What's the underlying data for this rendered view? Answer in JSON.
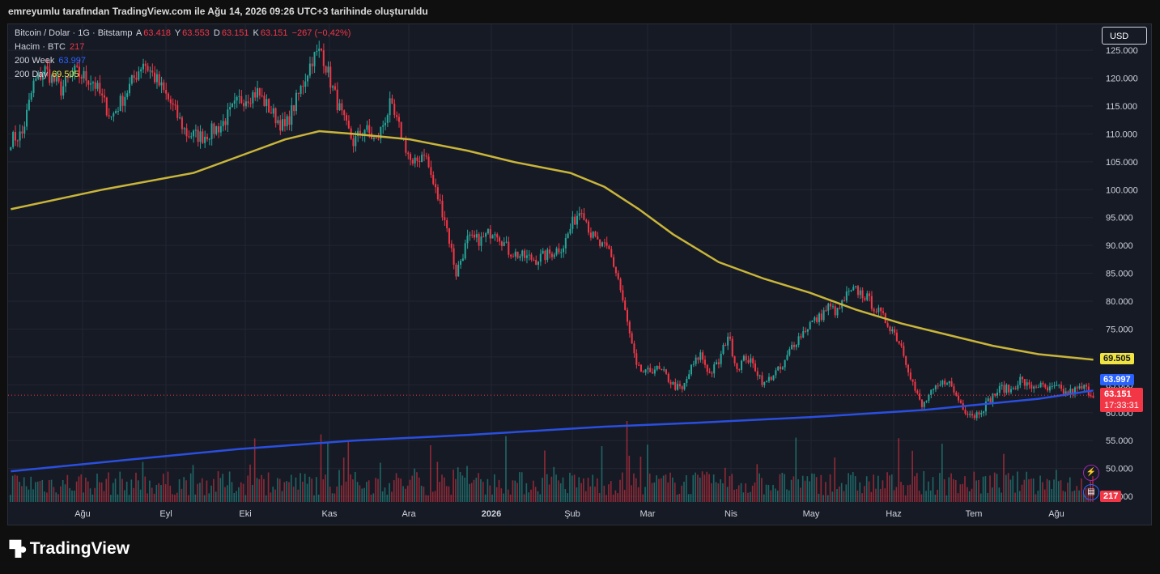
{
  "header": {
    "text": "emreyumlu tarafından TradingView.com ile Ağu 14, 2026 09:26 UTC+3 tarihinde oluşturuldu"
  },
  "legend": {
    "symbol": "Bitcoin / Dolar · 1G · Bitstamp",
    "ohlc": [
      {
        "label": "A",
        "value": "63.418"
      },
      {
        "label": "Y",
        "value": "63.553"
      },
      {
        "label": "D",
        "value": "63.151"
      },
      {
        "label": "K",
        "value": "63.151"
      }
    ],
    "change": "−267 (−0,42%)",
    "volume_label": "Hacim · BTC",
    "volume_value": "217",
    "ma_week_label": "200 Week",
    "ma_week_value": "63.997",
    "ma_day_label": "200 Day",
    "ma_day_value": "69.505"
  },
  "currency_button": "USD",
  "price_tag": {
    "price": "63.151",
    "countdown": "17:33:31"
  },
  "volume_tag": "217",
  "brand": "TradingView",
  "colors": {
    "up": "#26a69a",
    "down": "#f23645",
    "ma_day": "#c9b53a",
    "ma_week": "#2a4fe0",
    "grid": "#232632",
    "bg": "#161a25"
  },
  "chart_data": {
    "type": "candlestick",
    "y_ticks": [
      "45.000",
      "50.000",
      "55.000",
      "60.000",
      "65.000",
      "70.000",
      "75.000",
      "80.000",
      "85.000",
      "90.000",
      "95.000",
      "100.000",
      "105.000",
      "110.000",
      "115.000",
      "120.000",
      "125.000"
    ],
    "ylim": [
      44000,
      128500
    ],
    "x_ticks": [
      "Ağu",
      "Eyl",
      "Eki",
      "Kas",
      "Ara",
      "2026",
      "Şub",
      "Mar",
      "Nis",
      "May",
      "Haz",
      "Tem",
      "Ağu"
    ],
    "price_path": [
      [
        0,
        109000
      ],
      [
        5,
        110000
      ],
      [
        10,
        119000
      ],
      [
        15,
        121500
      ],
      [
        22,
        118000
      ],
      [
        28,
        121000
      ],
      [
        36,
        119500
      ],
      [
        44,
        113000
      ],
      [
        50,
        117000
      ],
      [
        58,
        123000
      ],
      [
        64,
        119500
      ],
      [
        70,
        115500
      ],
      [
        77,
        110000
      ],
      [
        84,
        109500
      ],
      [
        92,
        111500
      ],
      [
        100,
        116000
      ],
      [
        108,
        117500
      ],
      [
        114,
        114000
      ],
      [
        120,
        111000
      ],
      [
        126,
        117000
      ],
      [
        132,
        123500
      ],
      [
        136,
        125000
      ],
      [
        141,
        118000
      ],
      [
        146,
        112000
      ],
      [
        150,
        108500
      ],
      [
        155,
        111000
      ],
      [
        160,
        108500
      ],
      [
        166,
        115000
      ],
      [
        171,
        110000
      ],
      [
        176,
        104000
      ],
      [
        181,
        107000
      ],
      [
        185,
        101000
      ],
      [
        190,
        95000
      ],
      [
        195,
        85000
      ],
      [
        200,
        91000
      ],
      [
        206,
        91000
      ],
      [
        212,
        93000
      ],
      [
        218,
        89000
      ],
      [
        224,
        88000
      ],
      [
        230,
        87500
      ],
      [
        236,
        88500
      ],
      [
        242,
        90000
      ],
      [
        246,
        94000
      ],
      [
        250,
        97000
      ],
      [
        254,
        92000
      ],
      [
        258,
        90000
      ],
      [
        262,
        89000
      ],
      [
        266,
        84000
      ],
      [
        270,
        76000
      ],
      [
        274,
        68000
      ],
      [
        278,
        67000
      ],
      [
        282,
        68000
      ],
      [
        286,
        67000
      ],
      [
        290,
        65000
      ],
      [
        294,
        64000
      ],
      [
        298,
        68000
      ],
      [
        302,
        70500
      ],
      [
        306,
        67000
      ],
      [
        310,
        69000
      ],
      [
        314,
        74000
      ],
      [
        318,
        68000
      ],
      [
        322,
        70000
      ],
      [
        326,
        68000
      ],
      [
        330,
        65000
      ],
      [
        334,
        67000
      ],
      [
        338,
        68000
      ],
      [
        342,
        72000
      ],
      [
        346,
        74000
      ],
      [
        350,
        76000
      ],
      [
        354,
        77000
      ],
      [
        358,
        79000
      ],
      [
        362,
        78000
      ],
      [
        366,
        81000
      ],
      [
        370,
        82000
      ],
      [
        374,
        81000
      ],
      [
        378,
        79000
      ],
      [
        382,
        77000
      ],
      [
        386,
        75000
      ],
      [
        390,
        72000
      ],
      [
        393,
        68000
      ],
      [
        396,
        64000
      ],
      [
        399,
        61000
      ],
      [
        402,
        63000
      ],
      [
        406,
        64500
      ],
      [
        410,
        66000
      ],
      [
        414,
        63000
      ],
      [
        418,
        60500
      ],
      [
        422,
        59500
      ],
      [
        426,
        61000
      ],
      [
        430,
        63000
      ],
      [
        434,
        64500
      ],
      [
        438,
        64000
      ],
      [
        442,
        66000
      ],
      [
        446,
        64500
      ],
      [
        450,
        65000
      ],
      [
        454,
        64000
      ],
      [
        458,
        64500
      ],
      [
        462,
        63500
      ],
      [
        466,
        64000
      ],
      [
        470,
        64500
      ],
      [
        474,
        63151
      ]
    ],
    "ma_200d": [
      [
        0,
        96500
      ],
      [
        40,
        100000
      ],
      [
        80,
        103000
      ],
      [
        100,
        106000
      ],
      [
        120,
        109000
      ],
      [
        135,
        110500
      ],
      [
        150,
        110000
      ],
      [
        175,
        109000
      ],
      [
        200,
        107000
      ],
      [
        220,
        105000
      ],
      [
        245,
        103000
      ],
      [
        260,
        100500
      ],
      [
        275,
        96500
      ],
      [
        290,
        92000
      ],
      [
        310,
        87000
      ],
      [
        330,
        84000
      ],
      [
        350,
        81500
      ],
      [
        370,
        78500
      ],
      [
        390,
        76000
      ],
      [
        410,
        74000
      ],
      [
        430,
        72000
      ],
      [
        450,
        70500
      ],
      [
        474,
        69505
      ]
    ],
    "ma_200w": [
      [
        0,
        49500
      ],
      [
        50,
        51500
      ],
      [
        100,
        53500
      ],
      [
        150,
        55000
      ],
      [
        200,
        56000
      ],
      [
        260,
        57500
      ],
      [
        300,
        58200
      ],
      [
        350,
        59200
      ],
      [
        400,
        60500
      ],
      [
        450,
        62500
      ],
      [
        474,
        63997
      ]
    ]
  }
}
